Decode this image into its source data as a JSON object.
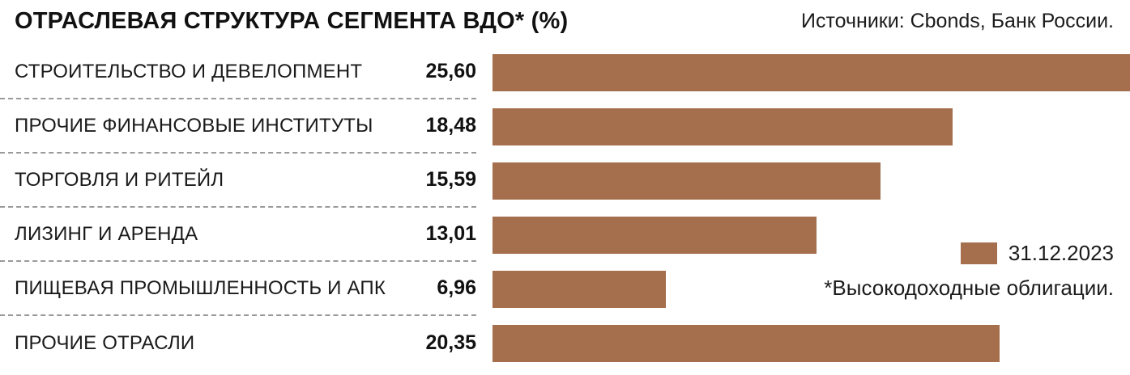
{
  "title": "ОТРАСЛЕВАЯ СТРУКТУРА СЕГМЕНТА ВДО* (%)",
  "source": "Источники: Cbonds, Банк России.",
  "legend": {
    "label": "31.12.2023",
    "color": "#a56f4d"
  },
  "footnote": "*Высокодоходные облигации.",
  "chart_data": {
    "type": "bar",
    "orientation": "horizontal",
    "title": "ОТРАСЛЕВАЯ СТРУКТУРА СЕГМЕНТА ВДО* (%)",
    "categories": [
      "СТРОИТЕЛЬСТВО И ДЕВЕЛОПМЕНТ",
      "ПРОЧИЕ ФИНАНСОВЫЕ ИНСТИТУТЫ",
      "ТОРГОВЛЯ И РИТЕЙЛ",
      "ЛИЗИНГ И АРЕНДА",
      "ПИЩЕВАЯ ПРОМЫШЛЕННОСТЬ И АПК",
      "ПРОЧИЕ ОТРАСЛИ"
    ],
    "values": [
      25.6,
      18.48,
      15.59,
      13.01,
      6.96,
      20.35
    ],
    "value_labels": [
      "25,60",
      "18,48",
      "15,59",
      "13,01",
      "6,96",
      "20,35"
    ],
    "series_name": "31.12.2023",
    "bar_color": "#a56f4d",
    "xlim": [
      0,
      25.6
    ],
    "grid": "dashed row separators on label column only",
    "legend_position": "right-middle"
  }
}
